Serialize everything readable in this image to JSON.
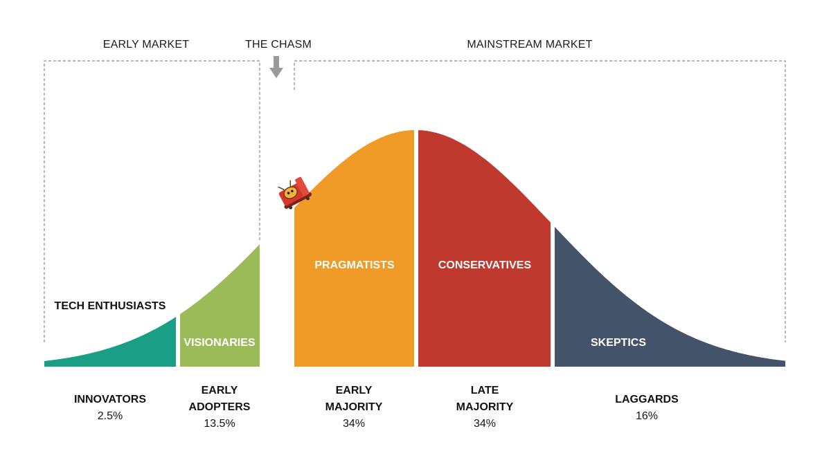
{
  "markets": {
    "early": "EARLY MARKET",
    "chasm": "THE CHASM",
    "mainstream": "MAINSTREAM MARKET"
  },
  "segments": [
    {
      "key": "innovators",
      "inner_label": "TECH ENTHUSIASTS",
      "title": [
        "INNOVATORS"
      ],
      "percent": "2.5%",
      "color": "#1a9e86"
    },
    {
      "key": "early_adopters",
      "inner_label": "VISIONARIES",
      "title": [
        "EARLY",
        "ADOPTERS"
      ],
      "percent": "13.5%",
      "color": "#9bbb59"
    },
    {
      "key": "early_majority",
      "inner_label": "PRAGMATISTS",
      "title": [
        "EARLY",
        "MAJORITY"
      ],
      "percent": "34%",
      "color": "#f09a28"
    },
    {
      "key": "late_majority",
      "inner_label": "CONSERVATIVES",
      "title": [
        "LATE",
        "MAJORITY"
      ],
      "percent": "34%",
      "color": "#c0392f"
    },
    {
      "key": "laggards",
      "inner_label": "SKEPTICS",
      "title": [
        "LAGGARDS"
      ],
      "percent": "16%",
      "color": "#435369"
    }
  ],
  "icons": {
    "chasm_arrow": "down-arrow-icon",
    "climber": "mascot-sled-icon"
  },
  "colors": {
    "bracket": "#8a8a8a",
    "arrow": "#9a9a9a"
  }
}
